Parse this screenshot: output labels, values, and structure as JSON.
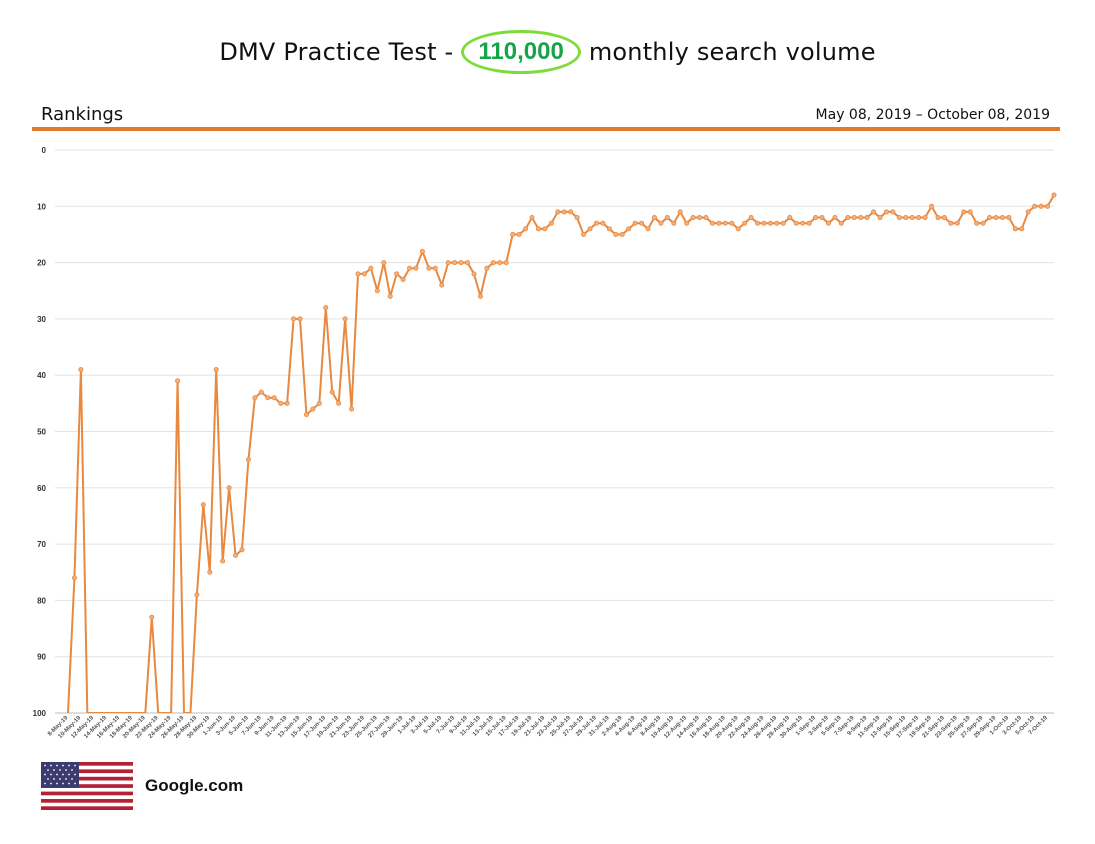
{
  "header": {
    "title_pre": "DMV Practice Test -",
    "title_highlight": "110,000",
    "title_post": "monthly search volume",
    "highlight_color": "#16a34a",
    "highlight_border_color": "#7ddc3a"
  },
  "subheader": {
    "left": "Rankings",
    "right": "May 08, 2019 – October 08, 2019",
    "rule_color": "#e07b2e"
  },
  "footer": {
    "flag_icon": "us-flag-icon",
    "label": "Google.com"
  },
  "chart_data": {
    "type": "line",
    "title": "",
    "xlabel": "",
    "ylabel": "",
    "y_inverted": true,
    "ylim": [
      0,
      100
    ],
    "yticks": [
      0,
      10,
      20,
      30,
      40,
      50,
      60,
      70,
      80,
      90,
      100
    ],
    "grid": true,
    "line_color": "#e8893f",
    "x_start_date": "2019-05-08",
    "x_end_date": "2019-10-08",
    "xtick_labels": [
      "8-May-19",
      "10-May-19",
      "12-May-19",
      "14-May-19",
      "16-May-19",
      "18-May-19",
      "20-May-19",
      "22-May-19",
      "24-May-19",
      "26-May-19",
      "28-May-19",
      "30-May-19",
      "1-Jun-19",
      "3-Jun-19",
      "5-Jun-19",
      "7-Jun-19",
      "9-Jun-19",
      "11-Jun-19",
      "13-Jun-19",
      "15-Jun-19",
      "17-Jun-19",
      "19-Jun-19",
      "21-Jun-19",
      "23-Jun-19",
      "25-Jun-19",
      "27-Jun-19",
      "29-Jun-19",
      "1-Jul-19",
      "3-Jul-19",
      "5-Jul-19",
      "7-Jul-19",
      "9-Jul-19",
      "11-Jul-19",
      "13-Jul-19",
      "15-Jul-19",
      "17-Jul-19",
      "19-Jul-19",
      "21-Jul-19",
      "23-Jul-19",
      "25-Jul-19",
      "27-Jul-19",
      "29-Jul-19",
      "31-Jul-19",
      "2-Aug-19",
      "4-Aug-19",
      "6-Aug-19",
      "8-Aug-19",
      "10-Aug-19",
      "12-Aug-19",
      "14-Aug-19",
      "16-Aug-19",
      "18-Aug-19",
      "20-Aug-19",
      "22-Aug-19",
      "24-Aug-19",
      "26-Aug-19",
      "28-Aug-19",
      "30-Aug-19",
      "1-Sep-19",
      "3-Sep-19",
      "5-Sep-19",
      "7-Sep-19",
      "9-Sep-19",
      "11-Sep-19",
      "13-Sep-19",
      "15-Sep-19",
      "17-Sep-19",
      "19-Sep-19",
      "21-Sep-19",
      "23-Sep-19",
      "25-Sep-19",
      "27-Sep-19",
      "29-Sep-19",
      "1-Oct-19",
      "3-Oct-19",
      "5-Oct-19",
      "7-Oct-19"
    ],
    "series": [
      {
        "name": "",
        "values": [
          100,
          76,
          39,
          100,
          100,
          100,
          100,
          100,
          100,
          100,
          100,
          100,
          100,
          83,
          100,
          100,
          100,
          41,
          100,
          100,
          79,
          63,
          75,
          39,
          73,
          60,
          72,
          71,
          55,
          44,
          43,
          44,
          44,
          45,
          45,
          30,
          30,
          47,
          46,
          45,
          28,
          43,
          45,
          30,
          46,
          22,
          22,
          21,
          25,
          20,
          26,
          22,
          23,
          21,
          21,
          18,
          21,
          21,
          24,
          20,
          20,
          20,
          20,
          22,
          26,
          21,
          20,
          20,
          20,
          15,
          15,
          14,
          12,
          14,
          14,
          13,
          11,
          11,
          11,
          12,
          15,
          14,
          13,
          13,
          14,
          15,
          15,
          14,
          13,
          13,
          14,
          12,
          13,
          12,
          13,
          11,
          13,
          12,
          12,
          12,
          13,
          13,
          13,
          13,
          14,
          13,
          12,
          13,
          13,
          13,
          13,
          13,
          12,
          13,
          13,
          13,
          12,
          12,
          13,
          12,
          13,
          12,
          12,
          12,
          12,
          11,
          12,
          11,
          11,
          12,
          12,
          12,
          12,
          12,
          10,
          12,
          12,
          13,
          13,
          11,
          11,
          13,
          13,
          12,
          12,
          12,
          12,
          14,
          14,
          11,
          10,
          10,
          10,
          8
        ]
      }
    ]
  }
}
